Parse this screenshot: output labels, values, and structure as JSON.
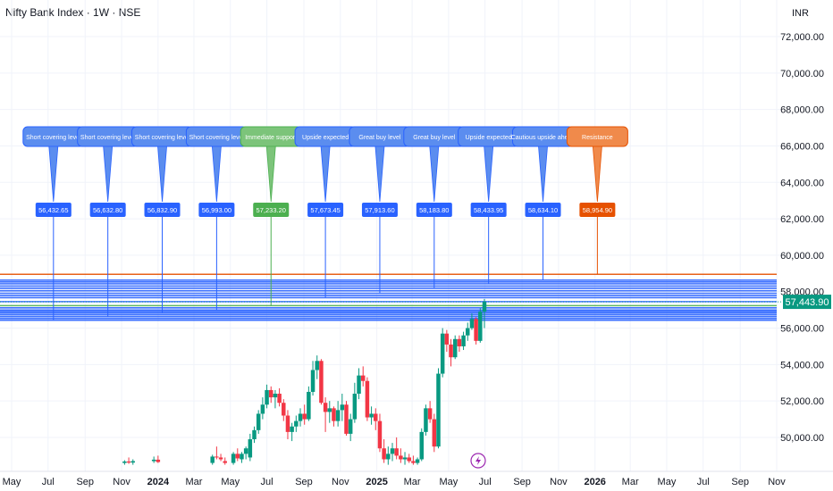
{
  "header": {
    "symbol_title": "Nifty Bank Index · 1W · NSE",
    "currency": "INR"
  },
  "colors": {
    "up": "#089981",
    "down": "#F23645",
    "level_blue": "#2962FF",
    "level_green": "#4CAF50",
    "level_orange": "#E65100",
    "callout_orange": "#F08A4B",
    "callout_blue": "#5B8DEF",
    "callout_green": "#7CC47A",
    "last_price_tag": "#089981",
    "grid": "#F0F3FA",
    "axis_text": "#131722",
    "flash_icon": "#9C27B0"
  },
  "chart_data": {
    "type": "candlestick",
    "y_axis": {
      "position": "right",
      "ticks": [
        50000,
        52000,
        54000,
        56000,
        58000,
        60000,
        62000,
        64000,
        66000,
        68000,
        70000,
        72000
      ],
      "tick_labels": [
        "50,000.00",
        "52,000.00",
        "54,000.00",
        "56,000.00",
        "58,000.00",
        "60,000.00",
        "62,000.00",
        "64,000.00",
        "66,000.00",
        "68,000.00",
        "70,000.00",
        "72,000.00"
      ],
      "range": [
        48700,
        73700
      ]
    },
    "x_axis": {
      "start": "2023-05",
      "end": "2026-11",
      "ticks": [
        {
          "label": "May",
          "date": "2023-05",
          "bold": false
        },
        {
          "label": "Jul",
          "date": "2023-07",
          "bold": false
        },
        {
          "label": "Sep",
          "date": "2023-09",
          "bold": false
        },
        {
          "label": "Nov",
          "date": "2023-11",
          "bold": false
        },
        {
          "label": "2024",
          "date": "2024-01",
          "bold": true
        },
        {
          "label": "Mar",
          "date": "2024-03",
          "bold": false
        },
        {
          "label": "May",
          "date": "2024-05",
          "bold": false
        },
        {
          "label": "Jul",
          "date": "2024-07",
          "bold": false
        },
        {
          "label": "Sep",
          "date": "2024-09",
          "bold": false
        },
        {
          "label": "Nov",
          "date": "2024-11",
          "bold": false
        },
        {
          "label": "2025",
          "date": "2025-01",
          "bold": true
        },
        {
          "label": "Mar",
          "date": "2025-03",
          "bold": false
        },
        {
          "label": "May",
          "date": "2025-05",
          "bold": false
        },
        {
          "label": "Jul",
          "date": "2025-07",
          "bold": false
        },
        {
          "label": "Sep",
          "date": "2025-09",
          "bold": false
        },
        {
          "label": "Nov",
          "date": "2025-11",
          "bold": false
        },
        {
          "label": "2026",
          "date": "2026-01",
          "bold": true
        },
        {
          "label": "Mar",
          "date": "2026-03",
          "bold": false
        },
        {
          "label": "May",
          "date": "2026-05",
          "bold": false
        },
        {
          "label": "Jul",
          "date": "2026-07",
          "bold": false
        },
        {
          "label": "Sep",
          "date": "2026-09",
          "bold": false
        },
        {
          "label": "Nov",
          "date": "2026-11",
          "bold": false
        }
      ]
    },
    "last_price": {
      "value": 57443.9,
      "label": "57,443.90"
    },
    "candles": [
      {
        "date": "2023-11-06",
        "o": 48600,
        "h": 48750,
        "l": 48500,
        "c": 48680
      },
      {
        "date": "2023-11-13",
        "o": 48680,
        "h": 48900,
        "l": 48550,
        "c": 48620
      },
      {
        "date": "2023-11-20",
        "o": 48620,
        "h": 48800,
        "l": 48500,
        "c": 48700
      },
      {
        "date": "2023-12-25",
        "o": 48700,
        "h": 48950,
        "l": 48600,
        "c": 48780
      },
      {
        "date": "2024-01-01",
        "o": 48780,
        "h": 49000,
        "l": 48600,
        "c": 48650
      },
      {
        "date": "2024-04-01",
        "o": 48600,
        "h": 49050,
        "l": 48500,
        "c": 48950
      },
      {
        "date": "2024-04-08",
        "o": 48950,
        "h": 49500,
        "l": 48800,
        "c": 48900
      },
      {
        "date": "2024-04-15",
        "o": 48900,
        "h": 49100,
        "l": 48700,
        "c": 48800
      },
      {
        "date": "2024-04-22",
        "o": 48700,
        "h": 48900,
        "l": 48500,
        "c": 48600
      },
      {
        "date": "2024-05-06",
        "o": 48600,
        "h": 49200,
        "l": 48500,
        "c": 49100
      },
      {
        "date": "2024-05-13",
        "o": 49100,
        "h": 49400,
        "l": 48700,
        "c": 48850
      },
      {
        "date": "2024-05-20",
        "o": 48800,
        "h": 49200,
        "l": 48600,
        "c": 49100
      },
      {
        "date": "2024-05-27",
        "o": 49100,
        "h": 49500,
        "l": 48800,
        "c": 49400
      },
      {
        "date": "2024-06-03",
        "o": 48900,
        "h": 50200,
        "l": 48700,
        "c": 49900
      },
      {
        "date": "2024-06-10",
        "o": 49900,
        "h": 50600,
        "l": 49700,
        "c": 50400
      },
      {
        "date": "2024-06-17",
        "o": 50400,
        "h": 51500,
        "l": 50200,
        "c": 51300
      },
      {
        "date": "2024-06-24",
        "o": 51300,
        "h": 52200,
        "l": 51000,
        "c": 51800
      },
      {
        "date": "2024-07-01",
        "o": 51800,
        "h": 52900,
        "l": 51600,
        "c": 52600
      },
      {
        "date": "2024-07-08",
        "o": 52600,
        "h": 52800,
        "l": 51900,
        "c": 52200
      },
      {
        "date": "2024-07-15",
        "o": 52200,
        "h": 52600,
        "l": 51600,
        "c": 52400
      },
      {
        "date": "2024-07-22",
        "o": 52400,
        "h": 52700,
        "l": 51700,
        "c": 51900
      },
      {
        "date": "2024-07-29",
        "o": 51900,
        "h": 52100,
        "l": 50900,
        "c": 51200
      },
      {
        "date": "2024-08-05",
        "o": 51200,
        "h": 51500,
        "l": 49900,
        "c": 50300
      },
      {
        "date": "2024-08-12",
        "o": 50300,
        "h": 50800,
        "l": 49800,
        "c": 50600
      },
      {
        "date": "2024-08-19",
        "o": 50600,
        "h": 51200,
        "l": 50300,
        "c": 50900
      },
      {
        "date": "2024-08-26",
        "o": 50900,
        "h": 51600,
        "l": 50600,
        "c": 51300
      },
      {
        "date": "2024-09-02",
        "o": 51300,
        "h": 51800,
        "l": 50700,
        "c": 51000
      },
      {
        "date": "2024-09-09",
        "o": 51000,
        "h": 52800,
        "l": 50900,
        "c": 52500
      },
      {
        "date": "2024-09-16",
        "o": 52500,
        "h": 54200,
        "l": 52300,
        "c": 53700
      },
      {
        "date": "2024-09-23",
        "o": 53700,
        "h": 54500,
        "l": 53200,
        "c": 54200
      },
      {
        "date": "2024-09-30",
        "o": 54200,
        "h": 54300,
        "l": 51800,
        "c": 51900
      },
      {
        "date": "2024-10-07",
        "o": 51900,
        "h": 52200,
        "l": 50300,
        "c": 51400
      },
      {
        "date": "2024-10-14",
        "o": 51400,
        "h": 52000,
        "l": 50800,
        "c": 51600
      },
      {
        "date": "2024-10-21",
        "o": 51600,
        "h": 51700,
        "l": 50600,
        "c": 50900
      },
      {
        "date": "2024-10-28",
        "o": 50900,
        "h": 52000,
        "l": 50600,
        "c": 51500
      },
      {
        "date": "2024-11-04",
        "o": 51500,
        "h": 52400,
        "l": 50900,
        "c": 51800
      },
      {
        "date": "2024-11-11",
        "o": 51800,
        "h": 52000,
        "l": 50100,
        "c": 50200
      },
      {
        "date": "2024-11-18",
        "o": 50200,
        "h": 51300,
        "l": 49800,
        "c": 51000
      },
      {
        "date": "2024-11-25",
        "o": 51000,
        "h": 53000,
        "l": 50800,
        "c": 52400
      },
      {
        "date": "2024-12-02",
        "o": 52400,
        "h": 53800,
        "l": 52100,
        "c": 53400
      },
      {
        "date": "2024-12-09",
        "o": 53400,
        "h": 53900,
        "l": 52800,
        "c": 53100
      },
      {
        "date": "2024-12-16",
        "o": 53100,
        "h": 53300,
        "l": 50900,
        "c": 51100
      },
      {
        "date": "2024-12-23",
        "o": 51100,
        "h": 51700,
        "l": 50700,
        "c": 51300
      },
      {
        "date": "2024-12-30",
        "o": 51300,
        "h": 51600,
        "l": 50400,
        "c": 50900
      },
      {
        "date": "2025-01-06",
        "o": 50900,
        "h": 51300,
        "l": 49200,
        "c": 49400
      },
      {
        "date": "2025-01-13",
        "o": 49400,
        "h": 49900,
        "l": 48600,
        "c": 48800
      },
      {
        "date": "2025-01-20",
        "o": 48800,
        "h": 49500,
        "l": 48500,
        "c": 49100
      },
      {
        "date": "2025-01-27",
        "o": 49100,
        "h": 49700,
        "l": 48700,
        "c": 49400
      },
      {
        "date": "2025-02-03",
        "o": 49400,
        "h": 50000,
        "l": 48800,
        "c": 49000
      },
      {
        "date": "2025-02-10",
        "o": 49000,
        "h": 49400,
        "l": 48600,
        "c": 48800
      },
      {
        "date": "2025-02-17",
        "o": 48800,
        "h": 49200,
        "l": 48500,
        "c": 48900
      },
      {
        "date": "2025-02-24",
        "o": 48900,
        "h": 49100,
        "l": 48600,
        "c": 48700
      },
      {
        "date": "2025-03-03",
        "o": 48700,
        "h": 49000,
        "l": 48500,
        "c": 48600
      },
      {
        "date": "2025-03-10",
        "o": 48600,
        "h": 48900,
        "l": 48500,
        "c": 48800
      },
      {
        "date": "2025-03-17",
        "o": 48800,
        "h": 50500,
        "l": 48700,
        "c": 50300
      },
      {
        "date": "2025-03-24",
        "o": 50300,
        "h": 51800,
        "l": 50100,
        "c": 51600
      },
      {
        "date": "2025-03-31",
        "o": 51600,
        "h": 52000,
        "l": 50800,
        "c": 51000
      },
      {
        "date": "2025-04-07",
        "o": 51000,
        "h": 51300,
        "l": 49200,
        "c": 49500
      },
      {
        "date": "2025-04-14",
        "o": 49500,
        "h": 53800,
        "l": 49400,
        "c": 53500
      },
      {
        "date": "2025-04-21",
        "o": 53500,
        "h": 56000,
        "l": 53300,
        "c": 55700
      },
      {
        "date": "2025-04-28",
        "o": 55700,
        "h": 55900,
        "l": 54700,
        "c": 55100
      },
      {
        "date": "2025-05-05",
        "o": 55100,
        "h": 55400,
        "l": 53900,
        "c": 54400
      },
      {
        "date": "2025-05-12",
        "o": 54400,
        "h": 55600,
        "l": 54300,
        "c": 55400
      },
      {
        "date": "2025-05-19",
        "o": 55400,
        "h": 55600,
        "l": 54700,
        "c": 55000
      },
      {
        "date": "2025-05-26",
        "o": 55000,
        "h": 55800,
        "l": 54800,
        "c": 55600
      },
      {
        "date": "2025-06-02",
        "o": 55600,
        "h": 56300,
        "l": 55300,
        "c": 56000
      },
      {
        "date": "2025-06-09",
        "o": 56000,
        "h": 56800,
        "l": 55900,
        "c": 56500
      },
      {
        "date": "2025-06-16",
        "o": 56500,
        "h": 56600,
        "l": 55100,
        "c": 55300
      },
      {
        "date": "2025-06-23",
        "o": 55300,
        "h": 57100,
        "l": 55200,
        "c": 56900
      },
      {
        "date": "2025-06-30",
        "o": 56900,
        "h": 57600,
        "l": 56000,
        "c": 57443.9
      }
    ],
    "levels": [
      {
        "label": "Short covering level",
        "value_label": "56,432.65",
        "value": 56432.65,
        "color": "blue",
        "anchor_date": "2023-07-10"
      },
      {
        "label": "Short covering level",
        "value_label": "56,632.80",
        "value": 56632.8,
        "color": "blue",
        "anchor_date": "2023-10-09"
      },
      {
        "label": "Short covering level",
        "value_label": "56,832.90",
        "value": 56832.9,
        "color": "blue",
        "anchor_date": "2024-01-08"
      },
      {
        "label": "Short covering level",
        "value_label": "56,993.00",
        "value": 56993.0,
        "color": "blue",
        "anchor_date": "2024-04-08"
      },
      {
        "label": "Immediate support",
        "value_label": "57,233.20",
        "value": 57233.2,
        "color": "green",
        "anchor_date": "2024-07-08"
      },
      {
        "label": "Upside expected",
        "value_label": "57,673.45",
        "value": 57673.45,
        "color": "blue",
        "anchor_date": "2024-10-07"
      },
      {
        "label": "Great buy level",
        "value_label": "57,913.60",
        "value": 57913.6,
        "color": "blue",
        "anchor_date": "2025-01-06"
      },
      {
        "label": "Great buy level",
        "value_label": "58,183.80",
        "value": 58183.8,
        "color": "blue",
        "anchor_date": "2025-04-07"
      },
      {
        "label": "Upside expected",
        "value_label": "58,433.95",
        "value": 58433.95,
        "color": "blue",
        "anchor_date": "2025-07-07"
      },
      {
        "label": "Cautious upside ahead",
        "value_label": "58,634.10",
        "value": 58634.1,
        "color": "blue",
        "anchor_date": "2025-10-06"
      },
      {
        "label": "Resistance",
        "value_label": "58,954.90",
        "value": 58954.9,
        "color": "orange",
        "anchor_date": "2026-01-05"
      }
    ],
    "extra_level_lines": [
      56432.65,
      56532.7,
      56632.8,
      56732.85,
      56832.9,
      56913.0,
      56993.0,
      57113.1,
      57233.2,
      57453.3,
      57673.45,
      57793.5,
      57913.6,
      58048.7,
      58183.8,
      58308.9,
      58433.95,
      58534.0,
      58634.1,
      58954.9
    ]
  }
}
